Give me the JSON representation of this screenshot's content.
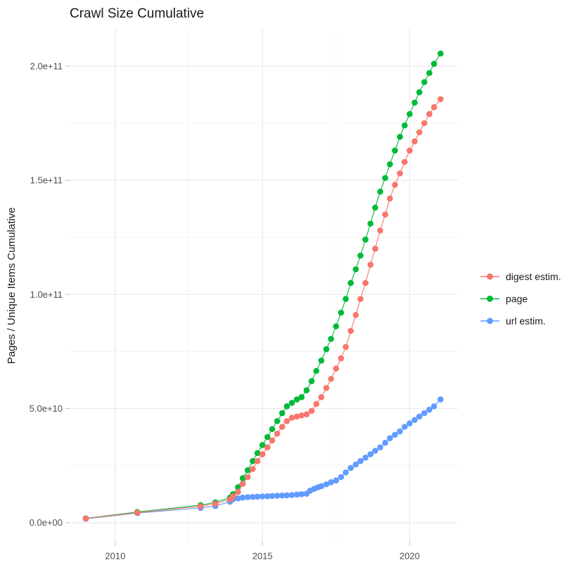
{
  "title": "Crawl Size Cumulative",
  "colors": {
    "background": "#ffffff",
    "grid_major": "#e9e9e9",
    "grid_minor": "#f5f5f5",
    "tick": "#c9c9c9",
    "tick_text": "#4d4d4d",
    "title_text": "#1a1a1a",
    "digest": "#F8766D",
    "page": "#00BA38",
    "url": "#619CFF"
  },
  "chart_data": {
    "type": "line",
    "title": "Crawl Size Cumulative",
    "xlabel": "",
    "ylabel": "Pages / Unique Items Cumulative",
    "grid": true,
    "legend_position": "right",
    "xlim": [
      2008.45,
      2021.64
    ],
    "ylim": [
      -8400000000,
      216000000000
    ],
    "x_ticks": {
      "values": [
        2010,
        2015,
        2020
      ],
      "labels": [
        "2010",
        "2015",
        "2020"
      ]
    },
    "x_minor": [
      2012.5,
      2017.5
    ],
    "y_ticks": {
      "values": [
        0,
        50000000000.0,
        100000000000.0,
        150000000000.0,
        200000000000.0
      ],
      "labels": [
        "0.0e+00",
        "5.0e+10",
        "1.0e+11",
        "1.5e+11",
        "2.0e+11"
      ]
    },
    "y_minor": [
      25000000000.0,
      75000000000.0,
      125000000000.0,
      175000000000.0
    ],
    "series": [
      {
        "name": "digest estim.",
        "key": "digest",
        "color": "#F8766D",
        "points": [
          [
            2009.0,
            1800000000.0
          ],
          [
            2010.75,
            4400000000.0
          ],
          [
            2012.9,
            7200000000.0
          ],
          [
            2013.4,
            8300000000.0
          ],
          [
            2013.9,
            10200000000.0
          ],
          [
            2014.0,
            11500000000.0
          ],
          [
            2014.17,
            13500000000.0
          ],
          [
            2014.33,
            17000000000.0
          ],
          [
            2014.5,
            20000000000.0
          ],
          [
            2014.67,
            23500000000.0
          ],
          [
            2014.83,
            27000000000.0
          ],
          [
            2015.0,
            30000000000.0
          ],
          [
            2015.17,
            33000000000.0
          ],
          [
            2015.33,
            36000000000.0
          ],
          [
            2015.5,
            39000000000.0
          ],
          [
            2015.67,
            42000000000.0
          ],
          [
            2015.83,
            44500000000.0
          ],
          [
            2016.0,
            46000000000.0
          ],
          [
            2016.17,
            46500000000.0
          ],
          [
            2016.33,
            47000000000.0
          ],
          [
            2016.5,
            47500000000.0
          ],
          [
            2016.67,
            49000000000.0
          ],
          [
            2016.83,
            52000000000.0
          ],
          [
            2017.0,
            55000000000.0
          ],
          [
            2017.17,
            59000000000.0
          ],
          [
            2017.33,
            63000000000.0
          ],
          [
            2017.5,
            67500000000.0
          ],
          [
            2017.67,
            72000000000.0
          ],
          [
            2017.83,
            77000000000.0
          ],
          [
            2018.0,
            84000000000.0
          ],
          [
            2018.17,
            91000000000.0
          ],
          [
            2018.33,
            98000000000.0
          ],
          [
            2018.5,
            105000000000.0
          ],
          [
            2018.67,
            113000000000.0
          ],
          [
            2018.83,
            120000000000.0
          ],
          [
            2019.0,
            128000000000.0
          ],
          [
            2019.17,
            135000000000.0
          ],
          [
            2019.33,
            142000000000.0
          ],
          [
            2019.5,
            148000000000.0
          ],
          [
            2019.67,
            153000000000.0
          ],
          [
            2019.83,
            158000000000.0
          ],
          [
            2020.0,
            163000000000.0
          ],
          [
            2020.17,
            167000000000.0
          ],
          [
            2020.33,
            171000000000.0
          ],
          [
            2020.5,
            175000000000.0
          ],
          [
            2020.67,
            179000000000.0
          ],
          [
            2020.83,
            182000000000.0
          ],
          [
            2021.05,
            185500000000.0
          ]
        ]
      },
      {
        "name": "page",
        "key": "page",
        "color": "#00BA38",
        "points": [
          [
            2009.0,
            1900000000.0
          ],
          [
            2010.75,
            4700000000.0
          ],
          [
            2012.9,
            7700000000.0
          ],
          [
            2013.4,
            8900000000.0
          ],
          [
            2013.9,
            11000000000.0
          ],
          [
            2014.0,
            12500000000.0
          ],
          [
            2014.17,
            15500000000.0
          ],
          [
            2014.33,
            19500000000.0
          ],
          [
            2014.5,
            23000000000.0
          ],
          [
            2014.67,
            27000000000.0
          ],
          [
            2014.83,
            30500000000.0
          ],
          [
            2015.0,
            34000000000.0
          ],
          [
            2015.17,
            37500000000.0
          ],
          [
            2015.33,
            41000000000.0
          ],
          [
            2015.5,
            44500000000.0
          ],
          [
            2015.67,
            48000000000.0
          ],
          [
            2015.83,
            51000000000.0
          ],
          [
            2016.0,
            52500000000.0
          ],
          [
            2016.17,
            54000000000.0
          ],
          [
            2016.33,
            55000000000.0
          ],
          [
            2016.5,
            58000000000.0
          ],
          [
            2016.67,
            62000000000.0
          ],
          [
            2016.83,
            66500000000.0
          ],
          [
            2017.0,
            71000000000.0
          ],
          [
            2017.17,
            76000000000.0
          ],
          [
            2017.33,
            80500000000.0
          ],
          [
            2017.5,
            86000000000.0
          ],
          [
            2017.67,
            92000000000.0
          ],
          [
            2017.83,
            98000000000.0
          ],
          [
            2018.0,
            105000000000.0
          ],
          [
            2018.17,
            111000000000.0
          ],
          [
            2018.33,
            117000000000.0
          ],
          [
            2018.5,
            124000000000.0
          ],
          [
            2018.67,
            131000000000.0
          ],
          [
            2018.83,
            138000000000.0
          ],
          [
            2019.0,
            145000000000.0
          ],
          [
            2019.17,
            151000000000.0
          ],
          [
            2019.33,
            157000000000.0
          ],
          [
            2019.5,
            163000000000.0
          ],
          [
            2019.67,
            169000000000.0
          ],
          [
            2019.83,
            174000000000.0
          ],
          [
            2020.0,
            179000000000.0
          ],
          [
            2020.17,
            184000000000.0
          ],
          [
            2020.33,
            188500000000.0
          ],
          [
            2020.5,
            193000000000.0
          ],
          [
            2020.67,
            197000000000.0
          ],
          [
            2020.83,
            201000000000.0
          ],
          [
            2021.05,
            205500000000.0
          ]
        ]
      },
      {
        "name": "url estim.",
        "key": "url",
        "color": "#619CFF",
        "points": [
          [
            2009.0,
            1700000000.0
          ],
          [
            2010.75,
            4200000000.0
          ],
          [
            2012.9,
            6500000000.0
          ],
          [
            2013.4,
            7300000000.0
          ],
          [
            2013.9,
            9200000000.0
          ],
          [
            2014.0,
            10300000000.0
          ],
          [
            2014.17,
            10700000000.0
          ],
          [
            2014.33,
            11000000000.0
          ],
          [
            2014.5,
            11200000000.0
          ],
          [
            2014.67,
            11300000000.0
          ],
          [
            2014.83,
            11400000000.0
          ],
          [
            2015.0,
            11500000000.0
          ],
          [
            2015.17,
            11600000000.0
          ],
          [
            2015.33,
            11700000000.0
          ],
          [
            2015.5,
            11800000000.0
          ],
          [
            2015.67,
            11900000000.0
          ],
          [
            2015.83,
            12000000000.0
          ],
          [
            2016.0,
            12100000000.0
          ],
          [
            2016.17,
            12300000000.0
          ],
          [
            2016.33,
            12500000000.0
          ],
          [
            2016.5,
            12700000000.0
          ],
          [
            2016.62,
            14000000000.0
          ],
          [
            2016.75,
            14800000000.0
          ],
          [
            2016.88,
            15500000000.0
          ],
          [
            2017.0,
            16000000000.0
          ],
          [
            2017.17,
            16800000000.0
          ],
          [
            2017.33,
            17700000000.0
          ],
          [
            2017.5,
            18500000000.0
          ],
          [
            2017.67,
            20000000000.0
          ],
          [
            2017.83,
            22000000000.0
          ],
          [
            2018.0,
            24000000000.0
          ],
          [
            2018.17,
            25500000000.0
          ],
          [
            2018.33,
            27000000000.0
          ],
          [
            2018.5,
            28500000000.0
          ],
          [
            2018.67,
            30000000000.0
          ],
          [
            2018.83,
            31500000000.0
          ],
          [
            2019.0,
            33000000000.0
          ],
          [
            2019.17,
            35000000000.0
          ],
          [
            2019.33,
            37000000000.0
          ],
          [
            2019.5,
            38500000000.0
          ],
          [
            2019.67,
            40000000000.0
          ],
          [
            2019.83,
            42000000000.0
          ],
          [
            2020.0,
            43500000000.0
          ],
          [
            2020.17,
            45000000000.0
          ],
          [
            2020.33,
            46500000000.0
          ],
          [
            2020.5,
            48000000000.0
          ],
          [
            2020.67,
            49500000000.0
          ],
          [
            2020.83,
            51000000000.0
          ],
          [
            2021.05,
            54000000000.0
          ]
        ]
      }
    ]
  }
}
